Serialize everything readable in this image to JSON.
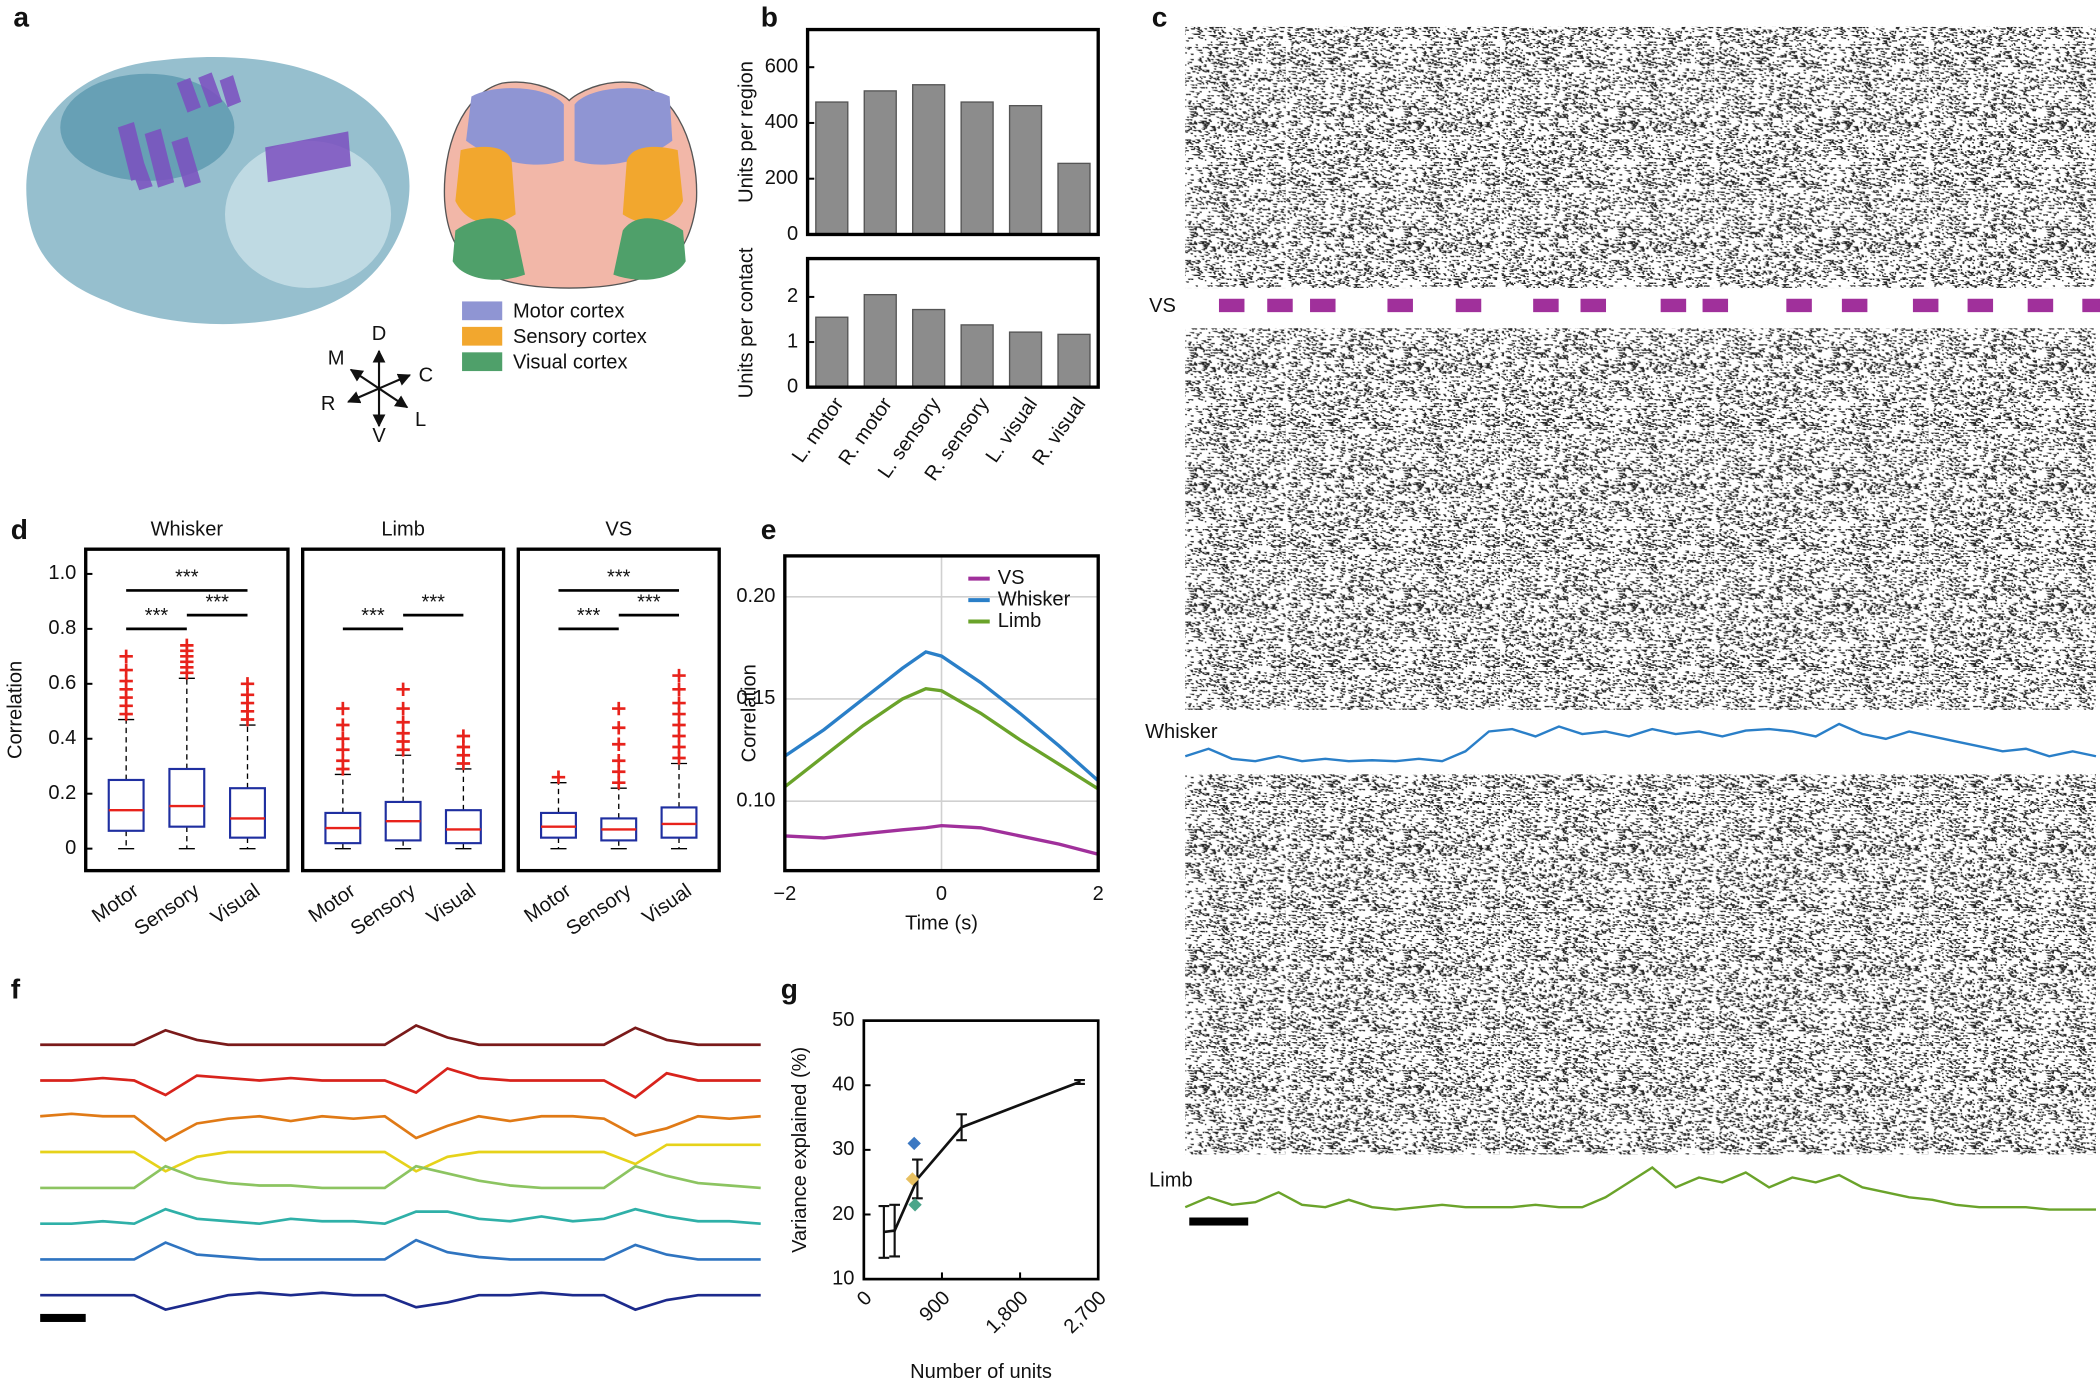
{
  "panel_a": {
    "label": "a",
    "legend": [
      {
        "name": "Motor cortex",
        "color": "#8f95d3"
      },
      {
        "name": "Sensory cortex",
        "color": "#f2a72e"
      },
      {
        "name": "Visual cortex",
        "color": "#4fa06a"
      }
    ],
    "compass": [
      "D",
      "M",
      "C",
      "R",
      "L",
      "V"
    ]
  },
  "chart_data": [
    {
      "type": "bar",
      "panel": "b",
      "ylabel": "Units per region",
      "values": [
        475,
        515,
        537,
        475,
        462,
        255
      ],
      "color": "#8c8c8c",
      "ylim": [
        0,
        735
      ],
      "yticks": [
        0,
        200,
        400,
        600
      ]
    },
    {
      "type": "bar",
      "ylabel": "Units per contact",
      "categories": [
        "L. motor",
        "R. motor",
        "L. sensory",
        "R. sensory",
        "L. visual",
        "R. visual"
      ],
      "values": [
        1.55,
        2.05,
        1.72,
        1.38,
        1.22,
        1.17
      ],
      "color": "#8c8c8c",
      "ylim": [
        0,
        2.85
      ],
      "yticks": [
        0,
        1,
        2
      ]
    },
    {
      "type": "raster",
      "panel": "c",
      "xlim": [
        0,
        100
      ],
      "vs": {
        "name": "VS",
        "color": "#a0309b",
        "events": [
          3.7,
          9.0,
          13.7,
          22.2,
          29.7,
          38.2,
          43.4,
          52.2,
          56.8,
          66.0,
          72.1,
          79.9,
          85.9,
          92.5,
          98.5
        ],
        "duration": 2.8
      },
      "series": [
        {
          "name": "Whisker",
          "color": "#2a7fc8",
          "values": [
            0.2,
            0.35,
            0.15,
            0.1,
            0.2,
            0.1,
            0.15,
            0.1,
            0.12,
            0.1,
            0.15,
            0.1,
            0.3,
            0.7,
            0.75,
            0.6,
            0.8,
            0.65,
            0.7,
            0.6,
            0.75,
            0.65,
            0.7,
            0.6,
            0.72,
            0.75,
            0.7,
            0.6,
            0.85,
            0.65,
            0.55,
            0.7,
            0.6,
            0.5,
            0.4,
            0.3,
            0.35,
            0.2,
            0.3,
            0.2
          ]
        },
        {
          "name": "Limb",
          "color": "#6aa32a",
          "values": [
            0.1,
            0.3,
            0.15,
            0.2,
            0.4,
            0.15,
            0.1,
            0.25,
            0.1,
            0.05,
            0.1,
            0.15,
            0.1,
            0.1,
            0.1,
            0.15,
            0.1,
            0.1,
            0.3,
            0.6,
            0.9,
            0.5,
            0.7,
            0.6,
            0.8,
            0.5,
            0.7,
            0.6,
            0.75,
            0.5,
            0.4,
            0.3,
            0.25,
            0.15,
            0.1,
            0.1,
            0.1,
            0.05,
            0.05,
            0.05
          ]
        }
      ]
    },
    {
      "type": "box",
      "panel": "d",
      "title": "Whisker",
      "title_color": "#2a7fc8",
      "ylabel": "Correlation",
      "categories": [
        "Motor",
        "Sensory",
        "Visual"
      ],
      "boxes": [
        {
          "low": 0,
          "q1": 0.065,
          "median": 0.14,
          "q3": 0.25,
          "high": 0.47,
          "outliers": [
            0.49,
            0.52,
            0.55,
            0.58,
            0.61,
            0.65,
            0.7
          ]
        },
        {
          "low": 0,
          "q1": 0.08,
          "median": 0.155,
          "q3": 0.29,
          "high": 0.62,
          "outliers": [
            0.64,
            0.66,
            0.68,
            0.7,
            0.72,
            0.74
          ]
        },
        {
          "low": 0,
          "q1": 0.04,
          "median": 0.11,
          "q3": 0.22,
          "high": 0.45,
          "outliers": [
            0.47,
            0.5,
            0.53,
            0.56,
            0.6
          ]
        }
      ],
      "box_color": "#1f2fa0",
      "median_color": "#e8221b",
      "outlier_color": "#e8221b",
      "ylim": [
        -0.08,
        1.09
      ],
      "yticks": [
        0,
        0.2,
        0.4,
        0.6,
        0.8,
        {
          "value": 1,
          "label": "1.0"
        }
      ],
      "annotations": [
        {
          "text": "***",
          "pair": [
            0,
            2
          ]
        },
        {
          "text": "***",
          "pair": [
            0,
            1
          ]
        },
        {
          "text": "***",
          "pair": [
            1,
            2
          ]
        }
      ]
    },
    {
      "type": "box",
      "title": "Limb",
      "title_color": "#6aa32a",
      "categories": [
        "Motor",
        "Sensory",
        "Visual"
      ],
      "boxes": [
        {
          "low": 0,
          "q1": 0.02,
          "median": 0.075,
          "q3": 0.13,
          "high": 0.27,
          "outliers": [
            0.29,
            0.32,
            0.36,
            0.4,
            0.45,
            0.51
          ]
        },
        {
          "low": 0,
          "q1": 0.03,
          "median": 0.1,
          "q3": 0.17,
          "high": 0.34,
          "outliers": [
            0.36,
            0.39,
            0.42,
            0.46,
            0.51,
            0.58
          ]
        },
        {
          "low": 0,
          "q1": 0.02,
          "median": 0.07,
          "q3": 0.14,
          "high": 0.29,
          "outliers": [
            0.31,
            0.34,
            0.37,
            0.41
          ]
        }
      ],
      "box_color": "#1f2fa0",
      "median_color": "#e8221b",
      "outlier_color": "#e8221b",
      "ylim": [
        -0.08,
        1.09
      ],
      "annotations": [
        {
          "text": "***",
          "pair": [
            0,
            1
          ]
        },
        {
          "text": "***",
          "pair": [
            1,
            2
          ]
        }
      ]
    },
    {
      "type": "box",
      "title": "VS",
      "title_color": "#a0309b",
      "categories": [
        "Motor",
        "Sensory",
        "Visual"
      ],
      "boxes": [
        {
          "low": 0,
          "q1": 0.04,
          "median": 0.08,
          "q3": 0.13,
          "high": 0.24,
          "outliers": [
            0.26
          ]
        },
        {
          "low": 0,
          "q1": 0.03,
          "median": 0.07,
          "q3": 0.11,
          "high": 0.22,
          "outliers": [
            0.24,
            0.28,
            0.32,
            0.38,
            0.44,
            0.51
          ]
        },
        {
          "low": 0,
          "q1": 0.04,
          "median": 0.09,
          "q3": 0.15,
          "high": 0.31,
          "outliers": [
            0.33,
            0.37,
            0.41,
            0.45,
            0.49,
            0.53,
            0.58,
            0.63
          ]
        }
      ],
      "box_color": "#1f2fa0",
      "median_color": "#e8221b",
      "outlier_color": "#e8221b",
      "ylim": [
        -0.08,
        1.09
      ],
      "annotations": [
        {
          "text": "***",
          "pair": [
            0,
            2
          ]
        },
        {
          "text": "***",
          "pair": [
            0,
            1
          ]
        },
        {
          "text": "***",
          "pair": [
            1,
            2
          ]
        }
      ]
    },
    {
      "type": "line",
      "panel": "e",
      "xlabel": "Time (s)",
      "ylabel": "Correlation",
      "x": [
        -2,
        -1.5,
        -1,
        -0.5,
        -0.2,
        0,
        0.5,
        1,
        1.5,
        2
      ],
      "series": [
        {
          "name": "VS",
          "color": "#a0309b",
          "values": [
            0.083,
            0.082,
            0.084,
            0.086,
            0.087,
            0.088,
            0.087,
            0.083,
            0.079,
            0.074
          ]
        },
        {
          "name": "Whisker",
          "color": "#2a7fc8",
          "values": [
            0.122,
            0.135,
            0.15,
            0.165,
            0.173,
            0.171,
            0.158,
            0.143,
            0.127,
            0.11
          ]
        },
        {
          "name": "Limb",
          "color": "#6aa32a",
          "values": [
            0.107,
            0.122,
            0.137,
            0.15,
            0.155,
            0.154,
            0.143,
            0.13,
            0.118,
            0.106
          ]
        }
      ],
      "xlim": [
        -2,
        2
      ],
      "xticks": [
        {
          "value": -2,
          "label": "−2"
        },
        0,
        2
      ],
      "ylim": [
        0.066,
        0.22
      ],
      "yticks": [
        {
          "value": 0.1,
          "label": "0.10"
        },
        0.15,
        {
          "value": 0.2,
          "label": "0.20"
        }
      ],
      "grid": true,
      "legend": "upper center"
    },
    {
      "type": "traces",
      "panel": "f",
      "series": [
        {
          "color": "#7a1a1a",
          "values": [
            0,
            0,
            0,
            0,
            0.6,
            0.2,
            0,
            0,
            0,
            0,
            0,
            0,
            0.8,
            0.3,
            0,
            0,
            0,
            0,
            0,
            0.7,
            0.2,
            0,
            0,
            0
          ]
        },
        {
          "color": "#d8231c",
          "values": [
            0,
            0,
            0.1,
            0,
            -0.6,
            0.2,
            0.1,
            0,
            0.1,
            0,
            0,
            0,
            -0.5,
            0.5,
            0.1,
            0,
            0,
            0,
            0,
            -0.7,
            0.3,
            0,
            0,
            0
          ]
        },
        {
          "color": "#e07a16",
          "values": [
            0,
            0.1,
            0,
            0,
            -1,
            -0.3,
            -0.1,
            0,
            -0.2,
            0,
            -0.1,
            0,
            -0.9,
            -0.4,
            0,
            -0.2,
            0,
            0,
            -0.1,
            -0.8,
            -0.5,
            0,
            -0.1,
            0
          ]
        },
        {
          "color": "#e6d21a",
          "values": [
            0,
            0,
            0,
            0,
            -0.8,
            -0.2,
            0,
            0,
            0,
            0,
            0,
            0,
            -0.8,
            -0.2,
            0,
            0,
            0,
            0,
            0,
            -0.5,
            0.3,
            0.3,
            0.3,
            0.3
          ]
        },
        {
          "color": "#8cc461",
          "values": [
            0,
            0,
            0,
            0,
            0.9,
            0.4,
            0.2,
            0.1,
            0.1,
            0,
            0,
            0,
            0.9,
            0.6,
            0.3,
            0.1,
            0,
            0,
            0,
            0.9,
            0.5,
            0.2,
            0.1,
            0
          ]
        },
        {
          "color": "#2fb0a8",
          "values": [
            0,
            0,
            0.1,
            0,
            0.6,
            0.2,
            0.1,
            0,
            0.2,
            0.1,
            0.1,
            0,
            0.5,
            0.5,
            0.2,
            0.1,
            0.3,
            0.1,
            0.2,
            0.6,
            0.3,
            0.1,
            0.1,
            0
          ]
        },
        {
          "color": "#2f74c0",
          "values": [
            0,
            0,
            0,
            0,
            0.7,
            0.2,
            0.1,
            0,
            0,
            0,
            0,
            0,
            0.8,
            0.3,
            0.1,
            0,
            0,
            0,
            0,
            0.6,
            0.2,
            0,
            0,
            0
          ]
        },
        {
          "color": "#1c2a8c",
          "values": [
            0,
            0,
            0,
            0,
            -0.6,
            -0.3,
            0,
            0.1,
            0,
            0.1,
            0,
            0,
            -0.5,
            -0.3,
            0,
            0,
            0.1,
            0,
            0,
            -0.6,
            -0.2,
            0,
            0,
            0
          ]
        }
      ]
    },
    {
      "type": "errorline",
      "panel": "g",
      "xlabel": "Number of units",
      "ylabel": "Variance explained (%)",
      "x": [
        231,
        355,
        617,
        1126,
        2485
      ],
      "values": [
        17.3,
        17.5,
        25.5,
        33.5,
        40.5
      ],
      "errors": [
        4,
        4,
        3,
        2,
        0.3
      ],
      "color": "#111111",
      "points": [
        {
          "x": 580,
          "y": 31,
          "color": "#3b78c2"
        },
        {
          "x": 560,
          "y": 25.5,
          "color": "#e8c060"
        },
        {
          "x": 590,
          "y": 21.5,
          "color": "#4aa58a"
        }
      ],
      "xlim": [
        0,
        2700
      ],
      "xticks": [
        0,
        900,
        {
          "value": 1800,
          "label": "1,800"
        },
        {
          "value": 2700,
          "label": "2,700"
        }
      ],
      "ylim": [
        10,
        50
      ],
      "yticks": [
        10,
        20,
        30,
        40,
        50
      ]
    }
  ]
}
